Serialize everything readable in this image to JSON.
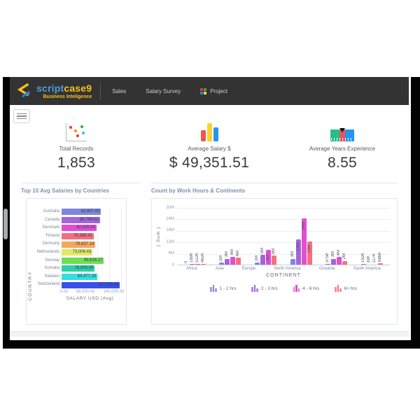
{
  "header": {
    "brand": {
      "script": "script",
      "case9": "case9",
      "subtitle": "Business Inteligence"
    },
    "nav": [
      {
        "label": "Sales"
      },
      {
        "label": "Salary Survey"
      },
      {
        "label": "Project"
      }
    ]
  },
  "kpis": [
    {
      "label": "Total Records",
      "value": "1,853",
      "icon": "scatter-icon"
    },
    {
      "label": "Average Salary $",
      "value": "$ 49,351.51",
      "icon": "bar-chart-icon"
    },
    {
      "label": "Average Years Experience",
      "value": "8.55",
      "icon": "gauge-icon"
    }
  ],
  "sections": {
    "left_title": "Top 10 Avg Salaries by Countries",
    "right_title": "Count by Work Hours & Continents"
  },
  "chart_data": [
    {
      "type": "bar",
      "orientation": "horizontal",
      "title": "Top 10 Avg Salaries by Countries",
      "xlabel": "SALARY USD (Avg)",
      "ylabel": "COUNTRY",
      "xlim": [
        0,
        140000
      ],
      "xticks": [
        "0.00",
        "56,000.00",
        "140,000.00"
      ],
      "xtick_positions": [
        0,
        0.4,
        1
      ],
      "grid": true,
      "categories": [
        "Australia",
        "Canada",
        "Denmark",
        "Finland",
        "Germany",
        "Netherlands",
        "Norway",
        "Somalia",
        "Sweden",
        "Switzerland"
      ],
      "values": [
        92857.63,
        89799.52,
        82525.52,
        75389.41,
        79637.14,
        73006.43,
        99616.17,
        78000.0,
        84477.26,
        137525.55
      ],
      "value_labels": [
        "92,857.63",
        "89,799.52",
        "82,525.52",
        "75,389.41",
        "79,637.14",
        "73,006.43",
        "99,616.17",
        "78,000.00",
        "84,477.26",
        "137,525.55"
      ],
      "bar_colors": [
        "#7d87dd",
        "#a465d8",
        "#e14ecf",
        "#f46e7e",
        "#f8a65c",
        "#e5e765",
        "#6ede52",
        "#2ad0a5",
        "#36dede",
        "#3b50e8"
      ]
    },
    {
      "type": "bar",
      "orientation": "vertical-grouped",
      "title": "Count by Work Hours & Continents",
      "xlabel": "CONTINENT",
      "ylabel": "( Sum )",
      "ylim": [
        0,
        30000000
      ],
      "yticks": [
        "30M",
        "24M",
        "18M",
        "12M",
        "6M",
        "0"
      ],
      "grid": true,
      "legend_position": "bottom",
      "categories": [
        "Africa",
        "Asia",
        "Europe",
        "North America",
        "Oceania",
        "South America"
      ],
      "series": [
        {
          "name": "1 - 2 hrs",
          "color": "#7d87dd",
          "values": [
            0,
            1000000,
            1000000,
            3000000,
            375000,
            192000
          ],
          "labels": [
            "0",
            "1M",
            "1M",
            "3M",
            "375K",
            "192K"
          ]
        },
        {
          "name": "2 - 3 hrs",
          "color": "#a465d8",
          "values": [
            189000,
            3000000,
            5000000,
            13000000,
            3000000,
            30000
          ],
          "labels": [
            "189K",
            "3M",
            "5M",
            "13M",
            "3M",
            "30K"
          ]
        },
        {
          "name": "4 - 6 hrs",
          "color": "#e14ecf",
          "values": [
            512000,
            4200000,
            7800000,
            24000000,
            4000000,
            117000
          ],
          "labels": [
            "512K",
            "4M",
            "8M",
            "24M",
            "4M",
            "117K"
          ]
        },
        {
          "name": "8+ hrs",
          "color": "#f4707d",
          "values": [
            462000,
            3600000,
            4800000,
            12000000,
            2000000,
            686000
          ],
          "labels": [
            "462K",
            "4M",
            "5M",
            "12M",
            "2M",
            "686K"
          ]
        }
      ]
    }
  ],
  "colors": {
    "header_bg": "#333333",
    "brand_blue": "#4f9bd8",
    "brand_yellow": "#f5c21d",
    "section_title": "#8091ad",
    "frame_black": "#030303"
  }
}
